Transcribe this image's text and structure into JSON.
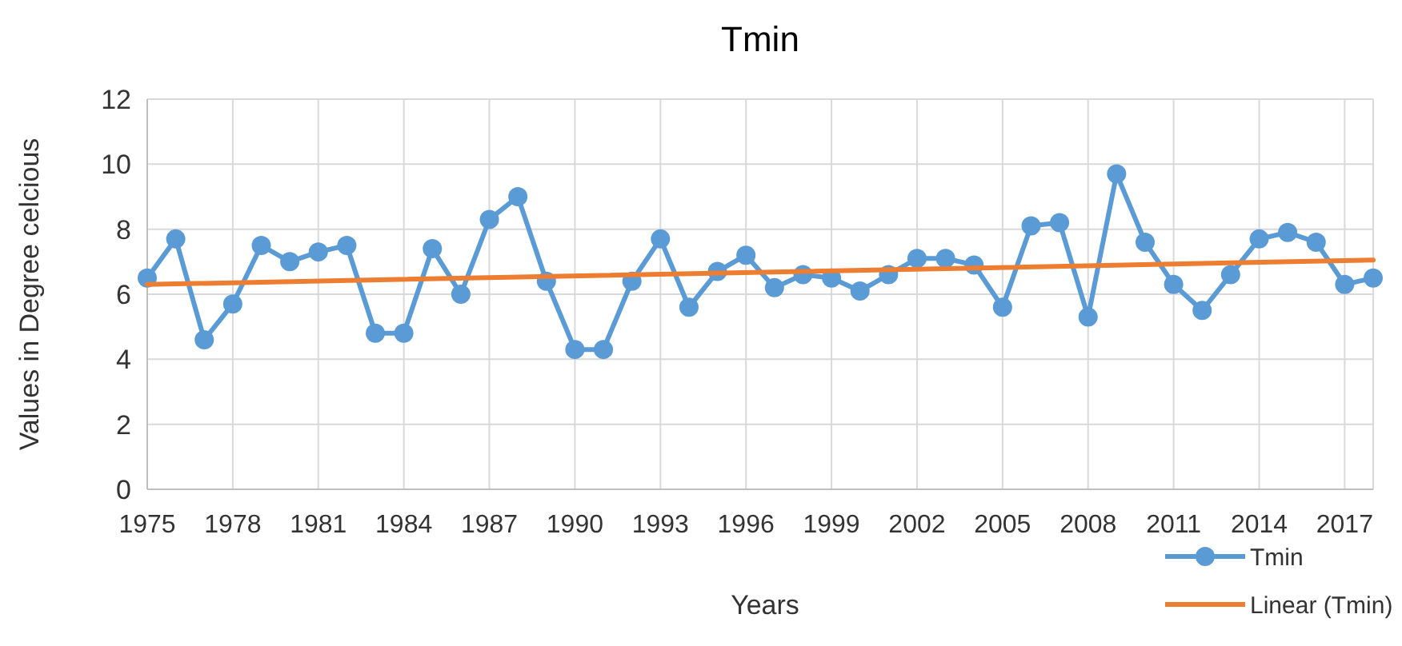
{
  "chart_data": {
    "type": "line",
    "title": "Tmin",
    "xlabel": "Years",
    "ylabel": "Values in Degree celcious",
    "x": [
      1975,
      1976,
      1977,
      1978,
      1979,
      1980,
      1981,
      1982,
      1983,
      1984,
      1985,
      1986,
      1987,
      1988,
      1989,
      1990,
      1991,
      1992,
      1993,
      1994,
      1995,
      1996,
      1997,
      1998,
      1999,
      2000,
      2001,
      2002,
      2003,
      2004,
      2005,
      2006,
      2007,
      2008,
      2009,
      2010,
      2011,
      2012,
      2013,
      2014,
      2015,
      2016,
      2017,
      2018
    ],
    "series": [
      {
        "name": "Tmin",
        "color": "#5b9bd5",
        "marker": "circle",
        "values": [
          6.5,
          7.7,
          4.6,
          5.7,
          7.5,
          7.0,
          7.3,
          7.5,
          4.8,
          4.8,
          7.4,
          6.0,
          8.3,
          9.0,
          6.4,
          4.3,
          4.3,
          6.4,
          7.7,
          5.6,
          6.7,
          7.2,
          6.2,
          6.6,
          6.5,
          6.1,
          6.6,
          7.1,
          7.1,
          6.9,
          5.6,
          8.1,
          8.2,
          5.3,
          9.7,
          7.6,
          6.3,
          5.5,
          6.6,
          7.7,
          7.9,
          7.6,
          6.3,
          6.5
        ]
      },
      {
        "name": "Linear (Tmin)",
        "color": "#ed7d31",
        "marker": "none",
        "x": [
          1975,
          2018
        ],
        "values": [
          6.3,
          7.05
        ]
      }
    ],
    "xlim": [
      1975,
      2018
    ],
    "xticks": [
      1975,
      1978,
      1981,
      1984,
      1987,
      1990,
      1993,
      1996,
      1999,
      2002,
      2005,
      2008,
      2011,
      2014,
      2017
    ],
    "ylim": [
      0,
      12
    ],
    "yticks": [
      0,
      2,
      4,
      6,
      8,
      10,
      12
    ],
    "grid": true,
    "legend": "bottom right"
  }
}
